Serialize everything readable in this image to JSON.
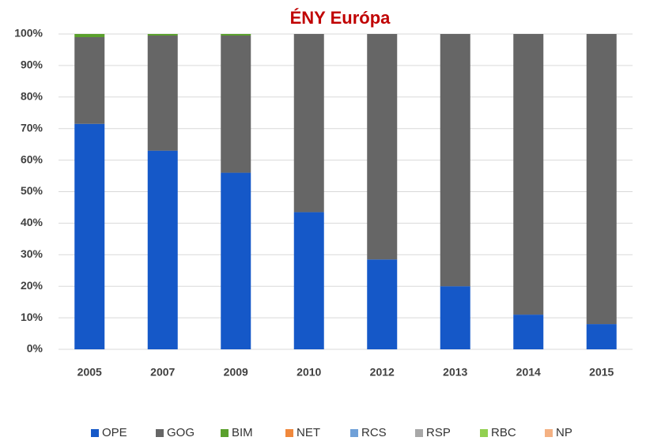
{
  "chart_data": {
    "type": "stacked_bar",
    "title": "ÉNY Európa",
    "categories": [
      "2005",
      "2007",
      "2009",
      "2010",
      "2012",
      "2013",
      "2014",
      "2015"
    ],
    "series": [
      {
        "name": "OPE",
        "color": "#1558c8",
        "values": [
          71.5,
          63,
          56,
          43.5,
          28.5,
          20,
          11,
          8
        ]
      },
      {
        "name": "GOG",
        "color": "#666666",
        "values": [
          27.5,
          36.5,
          43.5,
          56.5,
          71.5,
          80,
          89,
          92
        ]
      },
      {
        "name": "BIM",
        "color": "#5aa02c",
        "values": [
          1,
          0.5,
          0.5,
          0,
          0,
          0,
          0,
          0
        ]
      },
      {
        "name": "NET",
        "color": "#f0883c",
        "values": [
          0,
          0,
          0,
          0,
          0,
          0,
          0,
          0
        ]
      },
      {
        "name": "RCS",
        "color": "#6fa0d8",
        "values": [
          0,
          0,
          0,
          0,
          0,
          0,
          0,
          0
        ]
      },
      {
        "name": "RSP",
        "color": "#a8a8a8",
        "values": [
          0,
          0,
          0,
          0,
          0,
          0,
          0,
          0
        ]
      },
      {
        "name": "RBC",
        "color": "#92d050",
        "values": [
          0,
          0,
          0,
          0,
          0,
          0,
          0,
          0
        ]
      },
      {
        "name": "NP",
        "color": "#f4b183",
        "values": [
          0,
          0,
          0,
          0,
          0,
          0,
          0,
          0
        ]
      }
    ],
    "ylim": [
      0,
      100
    ],
    "yticks": [
      {
        "value": 0,
        "label": "0%"
      },
      {
        "value": 10,
        "label": "10%"
      },
      {
        "value": 20,
        "label": "20%"
      },
      {
        "value": 30,
        "label": "30%"
      },
      {
        "value": 40,
        "label": "40%"
      },
      {
        "value": 50,
        "label": "50%"
      },
      {
        "value": 60,
        "label": "60%"
      },
      {
        "value": 70,
        "label": "70%"
      },
      {
        "value": 80,
        "label": "80%"
      },
      {
        "value": 90,
        "label": "90%"
      },
      {
        "value": 100,
        "label": "100%"
      }
    ],
    "grid": true,
    "legend": "bottom"
  }
}
